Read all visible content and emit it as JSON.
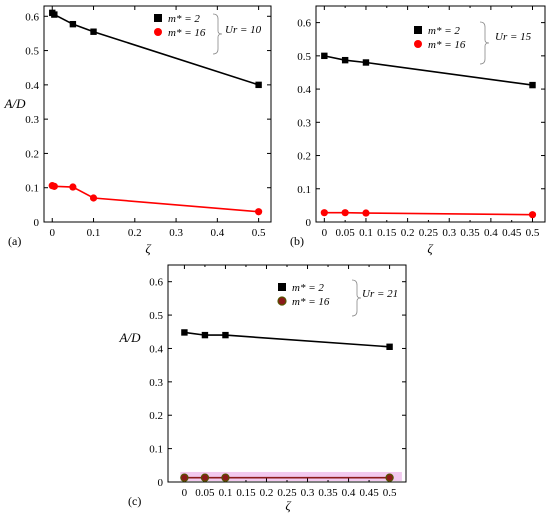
{
  "chart_data": [
    {
      "type": "line",
      "panel": "(a)",
      "xlabel": "ζ",
      "ylabel": "A/D",
      "xlim": [
        -0.02,
        0.53
      ],
      "ylim": [
        0,
        0.63
      ],
      "xticks": [
        "0",
        "0.1",
        "0.2",
        "0.3",
        "0.4",
        "0.5"
      ],
      "yticks": [
        "0",
        "0.1",
        "0.2",
        "0.3",
        "0.4",
        "0.5",
        "0.6"
      ],
      "series": [
        {
          "name": "m* = 2",
          "marker": "square",
          "color": "#000000",
          "x": [
            0,
            0.005,
            0.05,
            0.1,
            0.5
          ],
          "y": [
            0.61,
            0.605,
            0.577,
            0.555,
            0.4
          ]
        },
        {
          "name": "m* = 16",
          "marker": "circle",
          "color": "#ff0000",
          "x": [
            0,
            0.005,
            0.05,
            0.1,
            0.5
          ],
          "y": [
            0.106,
            0.104,
            0.102,
            0.07,
            0.03
          ]
        }
      ],
      "legend_labels": [
        "m* = 2",
        "m* = 16"
      ],
      "annotation": "Ur = 10"
    },
    {
      "type": "line",
      "panel": "(b)",
      "xlabel": "ζ",
      "ylabel": "",
      "xlim": [
        -0.02,
        0.53
      ],
      "ylim": [
        0,
        0.65
      ],
      "xticks": [
        "0",
        "0.05",
        "0.1",
        "0.15",
        "0.2",
        "0.25",
        "0.3",
        "0.35",
        "0.4",
        "0.45",
        "0.5"
      ],
      "yticks": [
        "0",
        "0.1",
        "0.2",
        "0.3",
        "0.4",
        "0.5",
        "0.6"
      ],
      "series": [
        {
          "name": "m* = 2",
          "marker": "square",
          "color": "#000000",
          "x": [
            0,
            0.05,
            0.1,
            0.5
          ],
          "y": [
            0.5,
            0.487,
            0.48,
            0.412
          ]
        },
        {
          "name": "m* = 16",
          "marker": "circle",
          "color": "#ff0000",
          "x": [
            0,
            0.05,
            0.1,
            0.5
          ],
          "y": [
            0.028,
            0.028,
            0.027,
            0.022
          ]
        }
      ],
      "legend_labels": [
        "m* = 2",
        "m* = 16"
      ],
      "annotation": "Ur = 15"
    },
    {
      "type": "line",
      "panel": "(c)",
      "xlabel": "ζ",
      "ylabel": "A/D",
      "xlim": [
        -0.04,
        0.54
      ],
      "ylim": [
        0,
        0.65
      ],
      "xticks": [
        "0",
        "0.05",
        "0.1",
        "0.15",
        "0.2",
        "0.25",
        "0.3",
        "0.35",
        "0.4",
        "0.45",
        "0.5"
      ],
      "yticks": [
        "0",
        "0.1",
        "0.2",
        "0.3",
        "0.4",
        "0.5",
        "0.6"
      ],
      "series": [
        {
          "name": "m* = 2",
          "marker": "square",
          "color": "#000000",
          "x": [
            0,
            0.05,
            0.1,
            0.5
          ],
          "y": [
            0.448,
            0.44,
            0.44,
            0.405
          ]
        },
        {
          "name": "m* = 16",
          "marker": "circle",
          "color": "#8b1a1a",
          "x": [
            0,
            0.05,
            0.1,
            0.5
          ],
          "y": [
            0.013,
            0.013,
            0.013,
            0.013
          ]
        }
      ],
      "legend_labels": [
        "m* = 2",
        "m* = 16"
      ],
      "annotation": "Ur = 21"
    }
  ]
}
